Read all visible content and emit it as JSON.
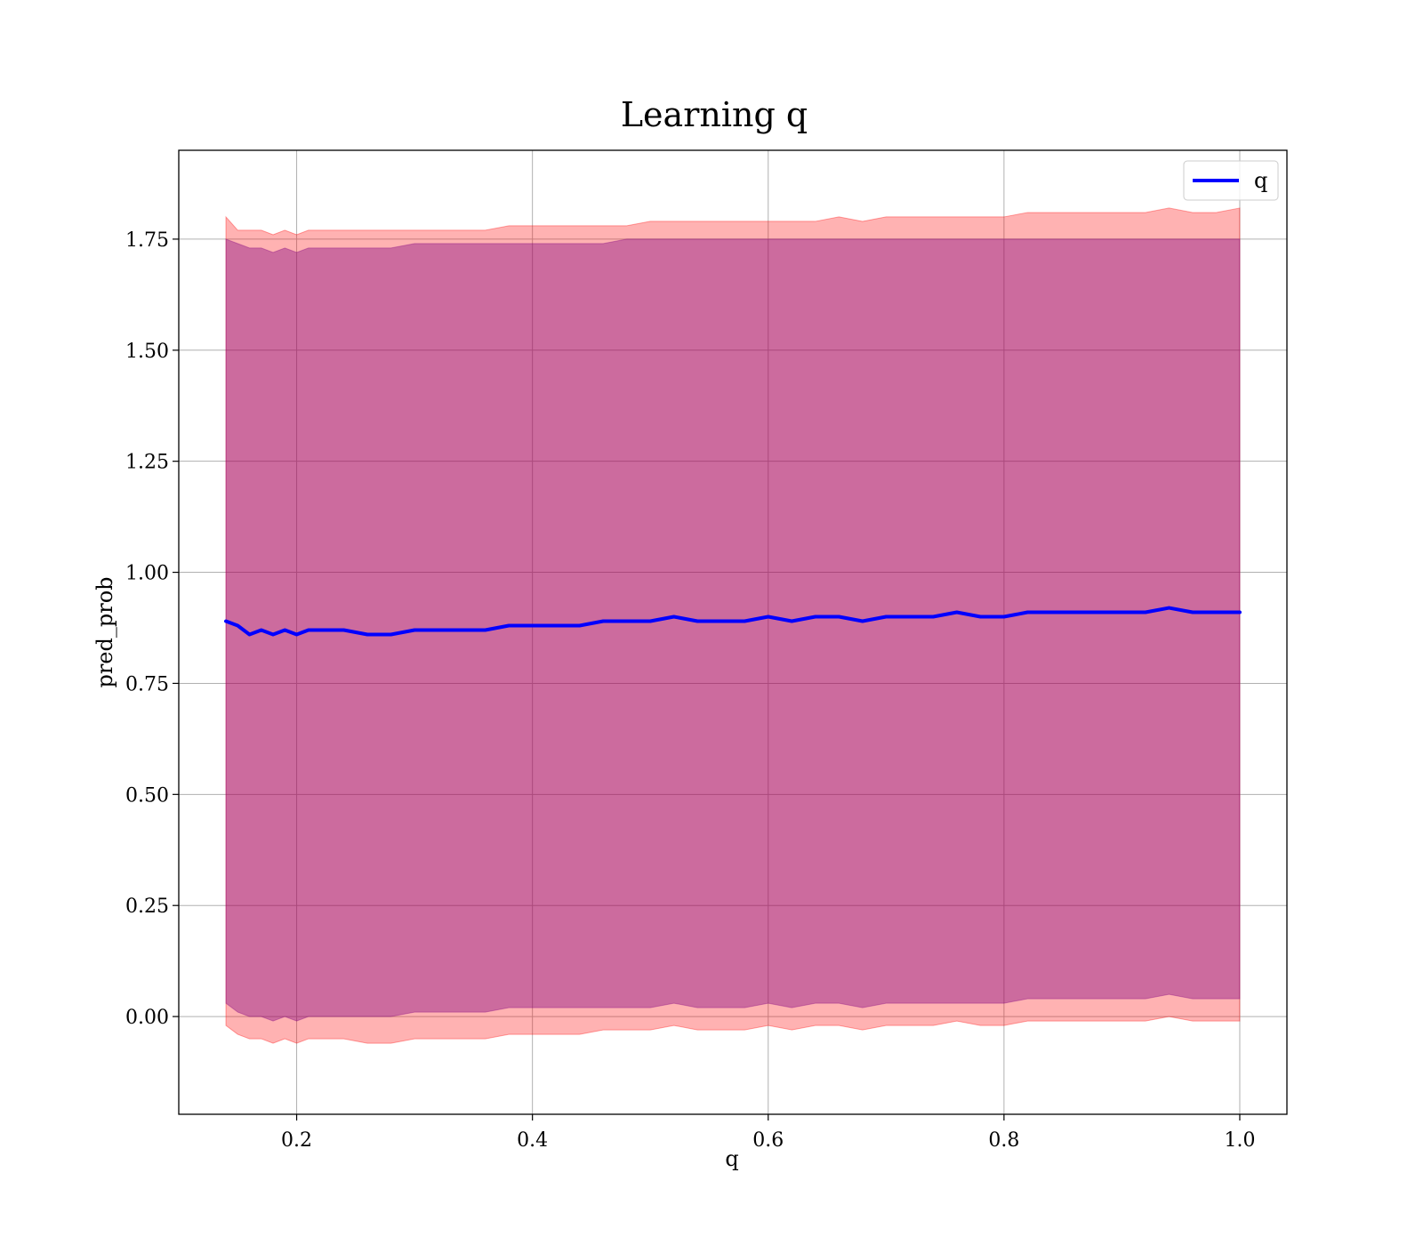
{
  "chart_data": {
    "type": "line",
    "title": "Learning q",
    "xlabel": "q",
    "ylabel": "pred_prob",
    "xlim": [
      0.1,
      1.04
    ],
    "ylim": [
      -0.22,
      1.95
    ],
    "xticks": [
      0.2,
      0.4,
      0.6,
      0.8,
      1.0
    ],
    "xtick_labels": [
      "0.2",
      "0.4",
      "0.6",
      "0.8",
      "1.0"
    ],
    "yticks": [
      0.0,
      0.25,
      0.5,
      0.75,
      1.0,
      1.25,
      1.5,
      1.75
    ],
    "ytick_labels": [
      "0.00",
      "0.25",
      "0.50",
      "0.75",
      "1.00",
      "1.25",
      "1.50",
      "1.75"
    ],
    "grid": true,
    "legend_position": "top-right",
    "series": [
      {
        "name": "q",
        "color": "#0000ff",
        "x": [
          0.14,
          0.15,
          0.16,
          0.17,
          0.18,
          0.19,
          0.2,
          0.21,
          0.22,
          0.24,
          0.26,
          0.28,
          0.3,
          0.32,
          0.34,
          0.36,
          0.38,
          0.4,
          0.42,
          0.44,
          0.46,
          0.48,
          0.5,
          0.52,
          0.54,
          0.56,
          0.58,
          0.6,
          0.62,
          0.64,
          0.66,
          0.68,
          0.7,
          0.72,
          0.74,
          0.76,
          0.78,
          0.8,
          0.82,
          0.84,
          0.86,
          0.88,
          0.9,
          0.92,
          0.94,
          0.96,
          0.98,
          1.0
        ],
        "y": [
          0.89,
          0.88,
          0.86,
          0.87,
          0.86,
          0.87,
          0.86,
          0.87,
          0.87,
          0.87,
          0.86,
          0.86,
          0.87,
          0.87,
          0.87,
          0.87,
          0.88,
          0.88,
          0.88,
          0.88,
          0.89,
          0.89,
          0.89,
          0.9,
          0.89,
          0.89,
          0.89,
          0.9,
          0.89,
          0.9,
          0.9,
          0.89,
          0.9,
          0.9,
          0.9,
          0.91,
          0.9,
          0.9,
          0.91,
          0.91,
          0.91,
          0.91,
          0.91,
          0.91,
          0.92,
          0.91,
          0.91,
          0.91
        ]
      }
    ],
    "bands": [
      {
        "color": "#ff0000",
        "opacity": 0.3,
        "upper": [
          1.8,
          1.77,
          1.77,
          1.77,
          1.76,
          1.77,
          1.76,
          1.77,
          1.77,
          1.77,
          1.77,
          1.77,
          1.77,
          1.77,
          1.77,
          1.77,
          1.78,
          1.78,
          1.78,
          1.78,
          1.78,
          1.78,
          1.79,
          1.79,
          1.79,
          1.79,
          1.79,
          1.79,
          1.79,
          1.79,
          1.8,
          1.79,
          1.8,
          1.8,
          1.8,
          1.8,
          1.8,
          1.8,
          1.81,
          1.81,
          1.81,
          1.81,
          1.81,
          1.81,
          1.82,
          1.81,
          1.81,
          1.82
        ],
        "lower": [
          -0.02,
          -0.04,
          -0.05,
          -0.05,
          -0.06,
          -0.05,
          -0.06,
          -0.05,
          -0.05,
          -0.05,
          -0.06,
          -0.06,
          -0.05,
          -0.05,
          -0.05,
          -0.05,
          -0.04,
          -0.04,
          -0.04,
          -0.04,
          -0.03,
          -0.03,
          -0.03,
          -0.02,
          -0.03,
          -0.03,
          -0.03,
          -0.02,
          -0.03,
          -0.02,
          -0.02,
          -0.03,
          -0.02,
          -0.02,
          -0.02,
          -0.01,
          -0.02,
          -0.02,
          -0.01,
          -0.01,
          -0.01,
          -0.01,
          -0.01,
          -0.01,
          0.0,
          -0.01,
          -0.01,
          -0.01
        ]
      },
      {
        "color": "#800080",
        "opacity": 0.4,
        "upper": [
          1.75,
          1.74,
          1.73,
          1.73,
          1.72,
          1.73,
          1.72,
          1.73,
          1.73,
          1.73,
          1.73,
          1.73,
          1.74,
          1.74,
          1.74,
          1.74,
          1.74,
          1.74,
          1.74,
          1.74,
          1.74,
          1.75,
          1.75,
          1.75,
          1.75,
          1.75,
          1.75,
          1.75,
          1.75,
          1.75,
          1.75,
          1.75,
          1.75,
          1.75,
          1.75,
          1.75,
          1.75,
          1.75,
          1.75,
          1.75,
          1.75,
          1.75,
          1.75,
          1.75,
          1.75,
          1.75,
          1.75,
          1.75
        ],
        "lower": [
          0.03,
          0.01,
          0.0,
          0.0,
          -0.01,
          0.0,
          -0.01,
          0.0,
          0.0,
          0.0,
          0.0,
          0.0,
          0.01,
          0.01,
          0.01,
          0.01,
          0.02,
          0.02,
          0.02,
          0.02,
          0.02,
          0.02,
          0.02,
          0.03,
          0.02,
          0.02,
          0.02,
          0.03,
          0.02,
          0.03,
          0.03,
          0.02,
          0.03,
          0.03,
          0.03,
          0.03,
          0.03,
          0.03,
          0.04,
          0.04,
          0.04,
          0.04,
          0.04,
          0.04,
          0.05,
          0.04,
          0.04,
          0.04
        ]
      }
    ]
  }
}
